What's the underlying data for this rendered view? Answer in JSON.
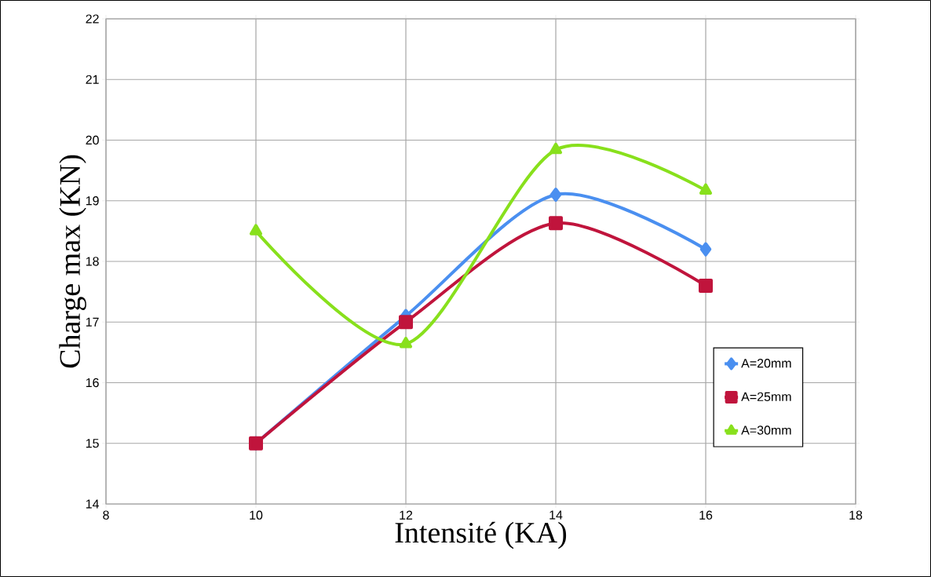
{
  "chart_data": {
    "type": "line",
    "xlabel": "Intensité (KA)",
    "ylabel": "Charge max (KN)",
    "x": [
      10,
      12,
      14,
      16
    ],
    "series": [
      {
        "name": "A=20mm",
        "color": "#4a8ff0",
        "marker": "diamond",
        "values": [
          15,
          17.1,
          19.1,
          18.2
        ]
      },
      {
        "name": "A=25mm",
        "color": "#c0143c",
        "marker": "square",
        "values": [
          15,
          17,
          18.63,
          17.6
        ]
      },
      {
        "name": "A=30mm",
        "color": "#88e01c",
        "marker": "triangle",
        "values": [
          18.5,
          16.64,
          19.84,
          19.17
        ]
      }
    ],
    "xlim": [
      8,
      18
    ],
    "xticks": [
      8,
      10,
      12,
      14,
      16,
      18
    ],
    "ylim": [
      14,
      22
    ],
    "yticks": [
      14,
      15,
      16,
      17,
      18,
      19,
      20,
      21,
      22
    ],
    "grid": true,
    "legend": "right",
    "line_style": "solid"
  }
}
